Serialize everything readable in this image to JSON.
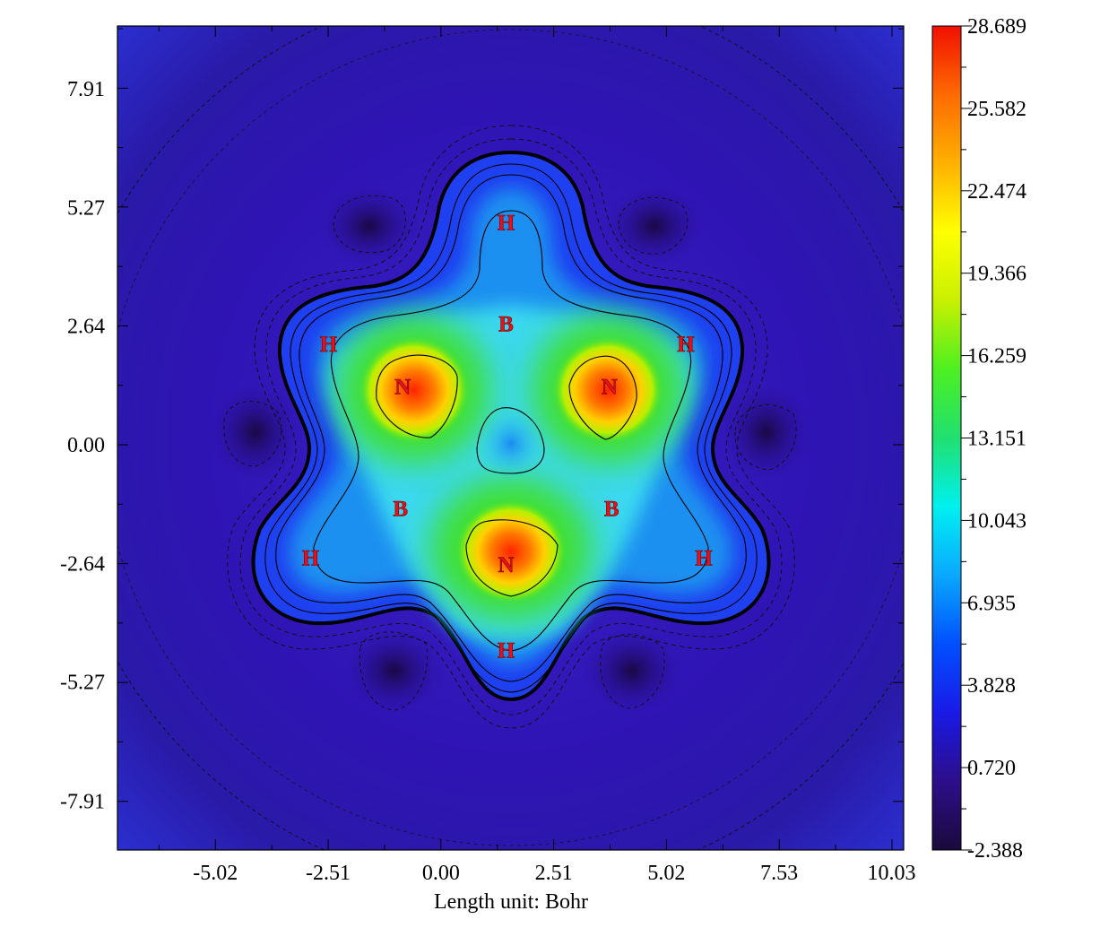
{
  "chart_data": {
    "type": "heatmap",
    "title": "",
    "xlabel": "Length unit: Bohr",
    "ylabel": "",
    "xlim": [
      -7.2,
      10.3
    ],
    "ylim": [
      -9.0,
      9.3
    ],
    "x_ticks": [
      -5.02,
      -2.51,
      0.0,
      2.51,
      5.02,
      7.53,
      10.03
    ],
    "x_tick_labels": [
      "-5.02",
      "-2.51",
      "0.00",
      "2.51",
      "5.02",
      "7.53",
      "10.03"
    ],
    "y_ticks": [
      7.91,
      5.27,
      2.64,
      0.0,
      -2.64,
      -5.27,
      -7.91
    ],
    "y_tick_labels": [
      "7.91",
      "5.27",
      "2.64",
      "0.00",
      "-2.64",
      "-5.27",
      "-7.91"
    ],
    "colorbar": {
      "min": -2.388,
      "max": 28.689,
      "ticks": [
        28.689,
        25.582,
        22.474,
        19.366,
        16.259,
        13.151,
        10.043,
        6.935,
        3.828,
        0.72,
        -2.388
      ],
      "tick_labels": [
        "28.689",
        "25.582",
        "22.474",
        "19.366",
        "16.259",
        "13.151",
        "10.043",
        "6.935",
        "3.828",
        "0.720",
        "-2.388"
      ]
    },
    "atoms": [
      {
        "symbol": "N",
        "x": -0.85,
        "y": 1.3
      },
      {
        "symbol": "N",
        "x": 3.75,
        "y": 1.3
      },
      {
        "symbol": "N",
        "x": 1.45,
        "y": -2.65
      },
      {
        "symbol": "B",
        "x": 1.45,
        "y": 2.7
      },
      {
        "symbol": "B",
        "x": -0.9,
        "y": -1.4
      },
      {
        "symbol": "B",
        "x": 3.8,
        "y": -1.4
      },
      {
        "symbol": "H",
        "x": 1.45,
        "y": 4.95
      },
      {
        "symbol": "H",
        "x": -2.5,
        "y": 2.25
      },
      {
        "symbol": "H",
        "x": 5.45,
        "y": 2.25
      },
      {
        "symbol": "H",
        "x": -2.9,
        "y": -2.5
      },
      {
        "symbol": "H",
        "x": 5.85,
        "y": -2.5
      },
      {
        "symbol": "H",
        "x": 1.45,
        "y": -4.55
      }
    ]
  },
  "colors": {
    "colormap": [
      "#1a0a3c",
      "#2d0e8a",
      "#1a1ae6",
      "#0050ff",
      "#0aa8ff",
      "#00f0f0",
      "#20e070",
      "#4cf020",
      "#c8f000",
      "#ffff00",
      "#ffb000",
      "#ff6a00",
      "#f01000"
    ],
    "atom_label": "#e8101a"
  }
}
